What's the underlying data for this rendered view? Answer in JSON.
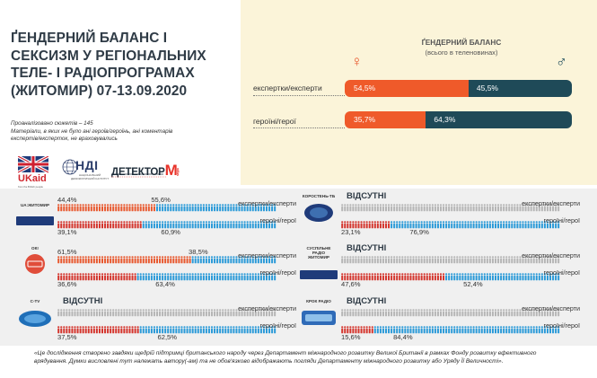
{
  "header": {
    "title_lines": [
      "ҐЕНДЕРНИЙ БАЛАНС І",
      "СЕКСИЗМ У РЕГІОНАЛЬНИХ",
      "ТЕЛЕ- І РАДІОПРОГРАМАХ",
      "(ЖИТОМИР) 07-13.09.2020"
    ],
    "meta_lines": [
      "Проаналізовано сюжетів – 145",
      "Матеріали, в яких не було ані героїв/героїнь, ані коментарів",
      "експертів/експерток, не враховувались"
    ]
  },
  "logos": {
    "ukaid": "UKaid",
    "ukaid_sub": "from the British people",
    "ndi": "НДІ",
    "ndi_sub": "НАЦІОНАЛЬНИЙ ДЕМОКРАТИЧНИЙ ІНСТИТУТ",
    "detector": "ДЕТЕКТОР",
    "detector_mark": "М",
    "detector_side": "медіа"
  },
  "balance": {
    "title": "ҐЕНДЕРНИЙ БАЛАНС",
    "subtitle": "(всього в теленовинах)",
    "female_symbol": "♀",
    "male_symbol": "♂",
    "rows": [
      {
        "label": "експертки/експерти",
        "female": 54.5,
        "male": 45.5,
        "female_text": "54,5%",
        "male_text": "45,5%"
      },
      {
        "label": "героїні/герої",
        "female": 35.7,
        "male": 64.3,
        "female_text": "35,7%",
        "male_text": "64,3%"
      }
    ]
  },
  "row_labels": {
    "experts": "експертки/експерти",
    "heroes": "героїні/герої"
  },
  "chart_data": [
    {
      "type": "bar",
      "categories": [
        "експертки/експерти",
        "героїні/герої"
      ],
      "series": [
        {
          "name": "♀",
          "values": [
            54.5,
            35.7
          ]
        },
        {
          "name": "♂",
          "values": [
            45.5,
            64.3
          ]
        }
      ],
      "title": "ҐЕНДЕРНИЙ БАЛАНС",
      "subtitle": "(всього в теленовинах)",
      "stacked": true,
      "unit": "%"
    }
  ],
  "channels": [
    {
      "id": "uajit",
      "name": "UA:ЖИТОМИР",
      "logo_text": "UA:ЖИТОМИР",
      "experts": {
        "female": 44.4,
        "male": 55.6,
        "female_text": "44,4%",
        "male_text": "55,6%",
        "absent": null
      },
      "heroes": {
        "female": 39.1,
        "male": 60.9,
        "female_text": "39,1%",
        "male_text": "60,9%"
      }
    },
    {
      "id": "korosten",
      "name": "КОРОСТЕНЬ-ТБ",
      "logo_text": "КТБ",
      "experts": {
        "female": null,
        "male": null,
        "female_text": "",
        "male_text": "",
        "absent": "ВІДСУТНІ"
      },
      "heroes": {
        "female": 23.1,
        "male": 76.9,
        "female_text": "23,1%",
        "male_text": "76,9%"
      }
    },
    {
      "id": "ok",
      "name": "ОК!",
      "logo_text": "ООО",
      "experts": {
        "female": 61.5,
        "male": 38.5,
        "female_text": "61,5%",
        "male_text": "38,5%",
        "absent": null
      },
      "heroes": {
        "female": 36.6,
        "male": 63.4,
        "female_text": "36,6%",
        "male_text": "63,4%"
      }
    },
    {
      "id": "suspilne",
      "name": "СУСПІЛЬНЕ РАДІО ЖИТОМИР",
      "name_lines": [
        "СУСПІЛЬНЕ",
        "РАДІО",
        "ЖИТОМИР"
      ],
      "logo_text": "UA:ЖИТОМИР",
      "experts": {
        "female": null,
        "male": null,
        "female_text": "",
        "male_text": "",
        "absent": "ВІДСУТНІ"
      },
      "heroes": {
        "female": 47.6,
        "male": 52.4,
        "female_text": "47,6%",
        "male_text": "52,4%"
      }
    },
    {
      "id": "ctv",
      "name": "С-TV",
      "logo_text": "С-TV",
      "experts": {
        "female": null,
        "male": null,
        "female_text": "",
        "male_text": "",
        "absent": "ВІДСУТНІ"
      },
      "heroes": {
        "female": 37.5,
        "male": 62.5,
        "female_text": "37,5%",
        "male_text": "62,5%"
      }
    },
    {
      "id": "kroc",
      "name": "КРОК РАДІО",
      "logo_text": "КРОК",
      "experts": {
        "female": null,
        "male": null,
        "female_text": "",
        "male_text": "",
        "absent": "ВІДСУТНІ"
      },
      "heroes": {
        "female": 15.6,
        "male": 84.4,
        "female_text": "15,6%",
        "male_text": "84,4%"
      }
    }
  ],
  "colors": {
    "female": "#ef5a2a",
    "male": "#1f4a58",
    "expert_female": "#e8582e",
    "expert_male": "#2a9ad8",
    "hero_female": "#d4342c",
    "hero_male": "#2a9ad8",
    "absent_fill": "#b5b5b5",
    "panel": "#fbf4d9",
    "grid_bg": "#f0f0f0"
  },
  "footnote_lines": [
    "«Це дослідження створено завдяки щедрій підтримці британського народу через Департамент міжнародного розвитку Великої Британії в рамках Фонду розвитку ефективного",
    "врядування. Думки висловлені тут належать автору(-ам) та не обов'язково відображають погляди Департаменту міжнародного розвитку або Уряду Її Величності»."
  ]
}
